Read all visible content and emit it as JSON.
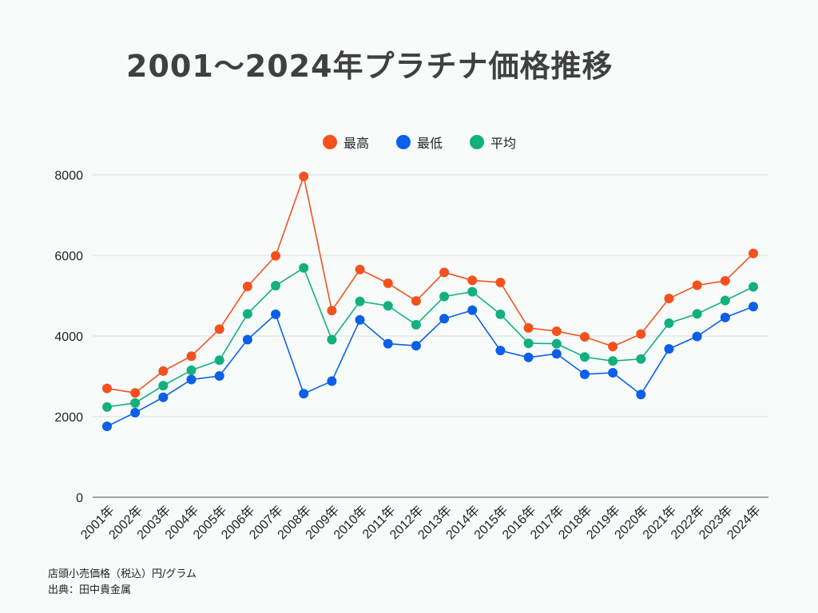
{
  "chart_data": {
    "type": "line",
    "title": "2001〜2024年プラチナ価格推移",
    "categories": [
      "2001年",
      "2002年",
      "2003年",
      "2004年",
      "2005年",
      "2006年",
      "2007年",
      "2008年",
      "2009年",
      "2010年",
      "2011年",
      "2012年",
      "2013年",
      "2014年",
      "2015年",
      "2016年",
      "2017年",
      "2018年",
      "2019年",
      "2020年",
      "2021年",
      "2022年",
      "2023年",
      "2024年"
    ],
    "series": [
      {
        "name": "最高",
        "color": "#f4511e",
        "values": [
          2700,
          2590,
          3130,
          3500,
          4170,
          5230,
          5990,
          7960,
          4630,
          5650,
          5310,
          4870,
          5580,
          5380,
          5330,
          4200,
          4120,
          3980,
          3740,
          4050,
          4930,
          5260,
          5370,
          6050
        ]
      },
      {
        "name": "最低",
        "color": "#0b5fe8",
        "values": [
          1760,
          2100,
          2480,
          2920,
          3010,
          3910,
          4540,
          2570,
          2880,
          4400,
          3810,
          3760,
          4430,
          4640,
          3640,
          3470,
          3560,
          3050,
          3090,
          2550,
          3680,
          3990,
          4460,
          4730
        ]
      },
      {
        "name": "平均",
        "color": "#12b07f",
        "values": [
          2240,
          2340,
          2770,
          3150,
          3400,
          4550,
          5250,
          5690,
          3910,
          4860,
          4750,
          4280,
          4980,
          5100,
          4540,
          3820,
          3810,
          3480,
          3380,
          3430,
          4320,
          4550,
          4880,
          5220
        ]
      }
    ],
    "yticks": [
      0,
      2000,
      4000,
      6000,
      8000
    ],
    "ylim": [
      0,
      8000
    ],
    "grid": true,
    "legend": "top-center"
  },
  "notes": {
    "unit": "店頭小売価格（税込）円/グラム",
    "source": "出典：田中貴金属"
  }
}
